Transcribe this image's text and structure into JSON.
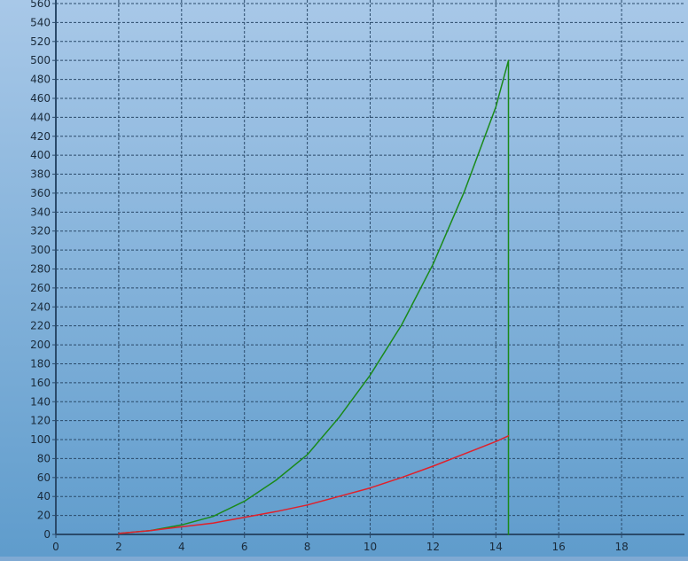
{
  "chart_data": {
    "type": "line",
    "title": "",
    "xlabel": "",
    "ylabel": "",
    "xlim": [
      0,
      20
    ],
    "ylim": [
      0,
      560
    ],
    "x_ticks": [
      0,
      2,
      4,
      6,
      8,
      10,
      12,
      14,
      16,
      18
    ],
    "y_ticks": [
      0,
      20,
      40,
      60,
      80,
      100,
      120,
      140,
      160,
      180,
      200,
      220,
      240,
      260,
      280,
      300,
      320,
      340,
      360,
      380,
      400,
      420,
      440,
      460,
      480,
      500,
      520,
      540,
      560
    ],
    "x_tick_labels": [
      "0",
      "2",
      "4",
      "6",
      "8",
      "10",
      "12",
      "14",
      "16",
      "18"
    ],
    "y_tick_labels": [
      "0",
      "20",
      "40",
      "60",
      "80",
      "100",
      "120",
      "140",
      "160",
      "180",
      "200",
      "220",
      "240",
      "260",
      "280",
      "300",
      "320",
      "340",
      "360",
      "380",
      "400",
      "420",
      "440",
      "460",
      "480",
      "500",
      "520",
      "540",
      "560"
    ],
    "grid": true,
    "legend": "none",
    "background_gradient": [
      "#a8c8e8",
      "#5f9ccc"
    ],
    "series": [
      {
        "color": "#1a8a1a",
        "x": [
          2,
          3,
          4,
          5,
          6,
          7,
          8,
          9,
          10,
          11,
          12,
          13,
          14,
          14.4,
          14.4
        ],
        "y": [
          1,
          4,
          10,
          19,
          35,
          57,
          84,
          123,
          168,
          221,
          285,
          362,
          451,
          500,
          0
        ]
      },
      {
        "color": "#e0202a",
        "x": [
          2,
          3,
          4,
          5,
          6,
          7,
          8,
          9,
          10,
          11,
          12,
          13,
          14,
          14.4
        ],
        "y": [
          1,
          4,
          8,
          12,
          18,
          24,
          31,
          40,
          49,
          60,
          72,
          85,
          98,
          104
        ]
      }
    ]
  }
}
